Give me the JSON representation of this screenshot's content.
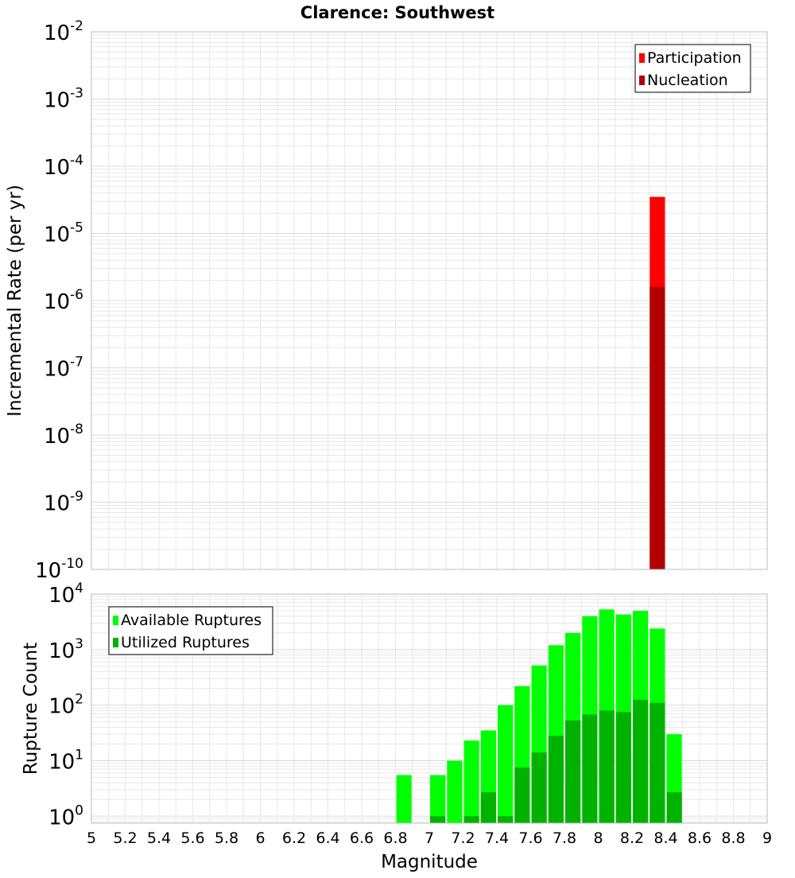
{
  "title": "Clarence: Southwest",
  "colors": {
    "participation": "#ff0000",
    "nucleation": "#b20000",
    "available": "#00ff00",
    "utilized": "#00b200",
    "grid": "#e8e8e8",
    "frame": "#bbbbbb"
  },
  "chart_data": [
    {
      "type": "bar",
      "title": "Clarence: Southwest",
      "xlabel": "",
      "ylabel": "Incremental Rate (per yr)",
      "xlim": [
        5,
        9
      ],
      "ylim": [
        1e-10,
        0.01
      ],
      "yscale": "log",
      "grid": true,
      "legend_position": "top-right",
      "y_tick_labels": [
        {
          "base": "10",
          "exp": "-10",
          "value": 1e-10
        },
        {
          "base": "10",
          "exp": "-9",
          "value": 1e-09
        },
        {
          "base": "10",
          "exp": "-8",
          "value": 1e-08
        },
        {
          "base": "10",
          "exp": "-7",
          "value": 1e-07
        },
        {
          "base": "10",
          "exp": "-6",
          "value": 1e-06
        },
        {
          "base": "10",
          "exp": "-5",
          "value": 1e-05
        },
        {
          "base": "10",
          "exp": "-4",
          "value": 0.0001
        },
        {
          "base": "10",
          "exp": "-3",
          "value": 0.001
        },
        {
          "base": "10",
          "exp": "-2",
          "value": 0.01
        }
      ],
      "series": [
        {
          "name": "Participation",
          "color": "#ff0000",
          "x": [
            8.35
          ],
          "values": [
            3.5e-05
          ]
        },
        {
          "name": "Nucleation",
          "color": "#b20000",
          "x": [
            8.35
          ],
          "values": [
            1.6e-06
          ]
        }
      ],
      "bin_width": 0.09
    },
    {
      "type": "bar",
      "title": "",
      "xlabel": "Magnitude",
      "ylabel": "Rupture Count",
      "xlim": [
        5,
        9
      ],
      "ylim": [
        0.75,
        10000
      ],
      "yscale": "log",
      "grid": true,
      "legend_position": "top-left",
      "y_tick_labels": [
        {
          "base": "10",
          "exp": "0",
          "value": 1
        },
        {
          "base": "10",
          "exp": "1",
          "value": 10
        },
        {
          "base": "10",
          "exp": "2",
          "value": 100
        },
        {
          "base": "10",
          "exp": "3",
          "value": 1000
        },
        {
          "base": "10",
          "exp": "4",
          "value": 10000
        }
      ],
      "x_tick_labels": [
        "5",
        "5.2",
        "5.4",
        "5.6",
        "5.8",
        "6",
        "6.2",
        "6.4",
        "6.6",
        "6.8",
        "7",
        "7.2",
        "7.4",
        "7.6",
        "7.8",
        "8",
        "8.2",
        "8.4",
        "8.6",
        "8.8",
        "9"
      ],
      "bin_width": 0.09,
      "series": [
        {
          "name": "Available Ruptures",
          "color": "#00ff00",
          "x": [
            6.85,
            7.05,
            7.15,
            7.25,
            7.35,
            7.45,
            7.55,
            7.65,
            7.75,
            7.85,
            7.95,
            8.05,
            8.15,
            8.25,
            8.35,
            8.45
          ],
          "values": [
            5.5,
            5.5,
            10,
            23,
            35,
            100,
            220,
            520,
            1200,
            2000,
            4000,
            5300,
            4300,
            5000,
            2400,
            30
          ]
        },
        {
          "name": "Utilized Ruptures",
          "color": "#00b200",
          "x": [
            7.05,
            7.25,
            7.35,
            7.45,
            7.55,
            7.65,
            7.75,
            7.85,
            7.95,
            8.05,
            8.15,
            8.25,
            8.35,
            8.45
          ],
          "values": [
            1,
            1,
            2.7,
            1,
            7.5,
            14,
            28,
            53,
            68,
            80,
            75,
            125,
            110,
            2.7
          ]
        }
      ]
    }
  ]
}
